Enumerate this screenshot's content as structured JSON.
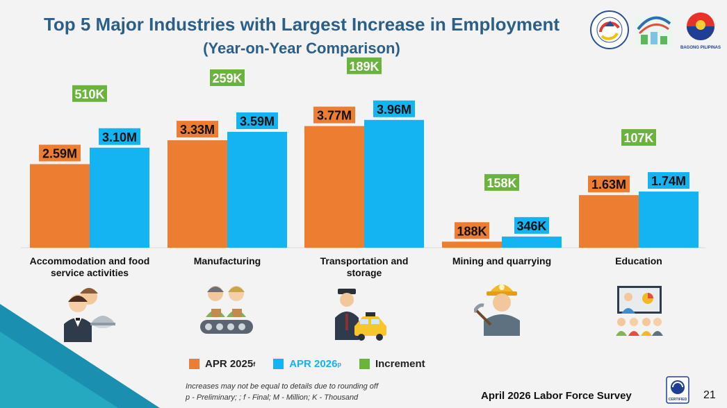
{
  "header": {
    "title": "Top 5 Major Industries with Largest Increase in Employment",
    "subtitle": "(Year-on-Year Comparison)"
  },
  "chart_data": {
    "type": "bar",
    "categories": [
      "Accommodation and food service activities",
      "Manufacturing",
      "Transportation and storage",
      "Mining and quarrying",
      "Education"
    ],
    "category_lines": [
      [
        "Accommodation and food",
        "service activities"
      ],
      [
        "Manufacturing"
      ],
      [
        "Transportation and",
        "storage"
      ],
      [
        "Mining and quarrying"
      ],
      [
        "Education"
      ]
    ],
    "series": [
      {
        "name": "APR 2025",
        "name_sup": "f",
        "color": "#ed7d31",
        "values": [
          2.59,
          3.33,
          3.77,
          0.188,
          1.63
        ],
        "labels": [
          "2.59M",
          "3.33M",
          "3.77M",
          "188K",
          "1.63M"
        ]
      },
      {
        "name": "APR 2026",
        "name_sup": "p",
        "color": "#13b4f1",
        "values": [
          3.1,
          3.59,
          3.96,
          0.346,
          1.74
        ],
        "labels": [
          "3.10M",
          "3.59M",
          "3.96M",
          "346K",
          "1.74M"
        ]
      }
    ],
    "increment": {
      "name": "Increment",
      "color": "#6ab43e",
      "values": [
        0.51,
        0.259,
        0.189,
        0.158,
        0.107
      ],
      "labels": [
        "510K",
        "259K",
        "189K",
        "158K",
        "107K"
      ]
    },
    "unit": "Million",
    "ylim": [
      0,
      4.3
    ],
    "grid": false,
    "legend_position": "bottom"
  },
  "icons": [
    "waiter-icon",
    "factory-workers-icon",
    "taxi-driver-icon",
    "miner-icon",
    "teacher-classroom-icon"
  ],
  "notes": {
    "line1": "Increases may not be equal to details due to rounding off",
    "line2": "p - Preliminary; ; f - Final; M - Million; K - Thousand"
  },
  "footer": {
    "survey": "April 2026 Labor Force Survey",
    "page": "21"
  }
}
